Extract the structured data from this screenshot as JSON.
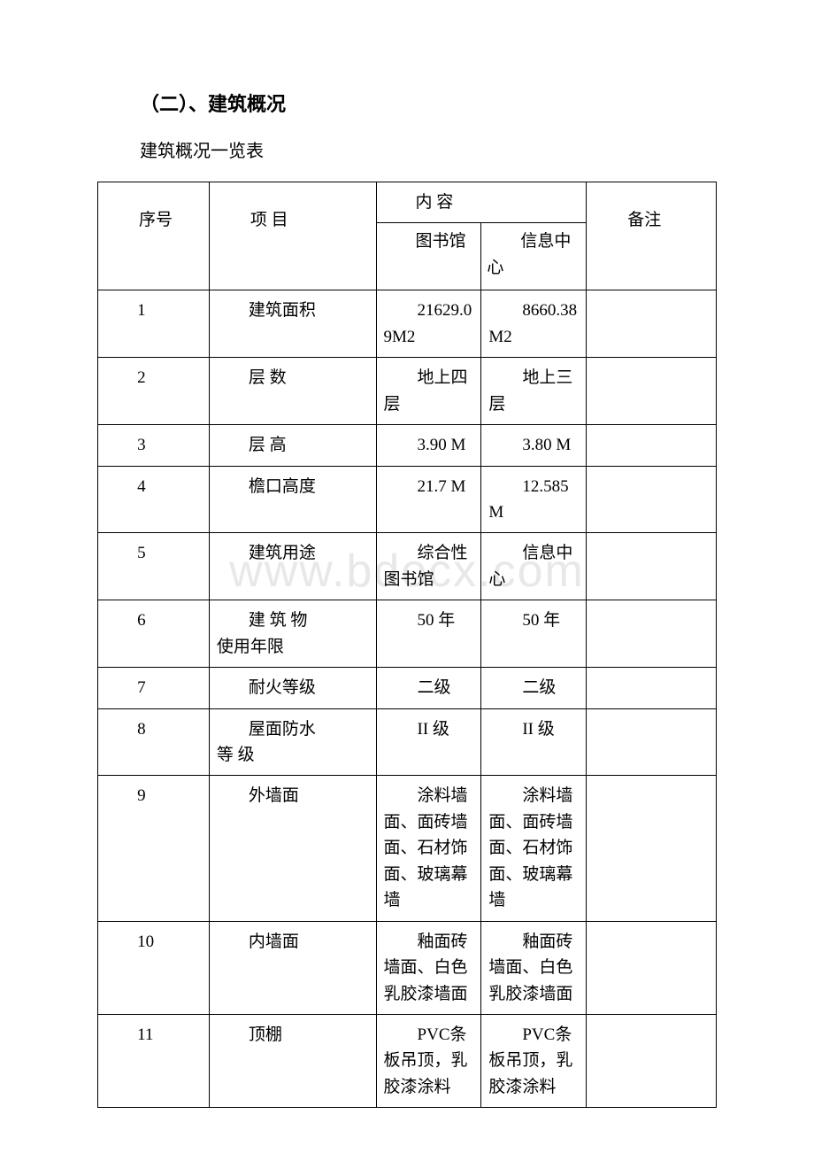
{
  "heading": "（二）、建筑概况",
  "subtitle": "建筑概况一览表",
  "headers": {
    "seq": "序号",
    "item": "项 目",
    "content": "内 容",
    "col1": "图书馆",
    "col2": "信息中心",
    "note": "备注"
  },
  "rows": [
    {
      "seq": "1",
      "item": "建筑面积",
      "c1": "21629.09M2",
      "c2": "8660.38 M2",
      "note": ""
    },
    {
      "seq": "2",
      "item": "层 数",
      "c1": "地上四层",
      "c2": "地上三层",
      "note": ""
    },
    {
      "seq": "3",
      "item": "层 高",
      "c1": "3.90 M",
      "c2": "3.80 M",
      "note": ""
    },
    {
      "seq": "4",
      "item": "檐口高度",
      "c1": "21.7 M",
      "c2": "12.585 M",
      "note": ""
    },
    {
      "seq": "5",
      "item": "建筑用途",
      "c1": "综合性图书馆",
      "c2": "信息中心",
      "note": ""
    },
    {
      "seq": "6",
      "item": "建 筑 物\n使用年限",
      "c1": "50 年",
      "c2": "50 年",
      "note": ""
    },
    {
      "seq": "7",
      "item": "耐火等级",
      "c1": "二级",
      "c2": "二级",
      "note": ""
    },
    {
      "seq": "8",
      "item": "屋面防水\n等 级",
      "c1": "II 级",
      "c2": "II 级",
      "note": ""
    },
    {
      "seq": "9",
      "item": "外墙面",
      "c1": "涂料墙面、面砖墙面、石材饰面、玻璃幕墙",
      "c2": "涂料墙面、面砖墙面、石材饰面、玻璃幕墙",
      "note": ""
    },
    {
      "seq": "10",
      "item": "内墙面",
      "c1": "釉面砖墙面、白色乳胶漆墙面",
      "c2": "釉面砖墙面、白色乳胶漆墙面",
      "note": ""
    },
    {
      "seq": "11",
      "item": "顶棚",
      "c1": "PVC条板吊顶，乳胶漆涂料",
      "c2": "PVC条板吊顶，乳胶漆涂料",
      "note": ""
    }
  ]
}
